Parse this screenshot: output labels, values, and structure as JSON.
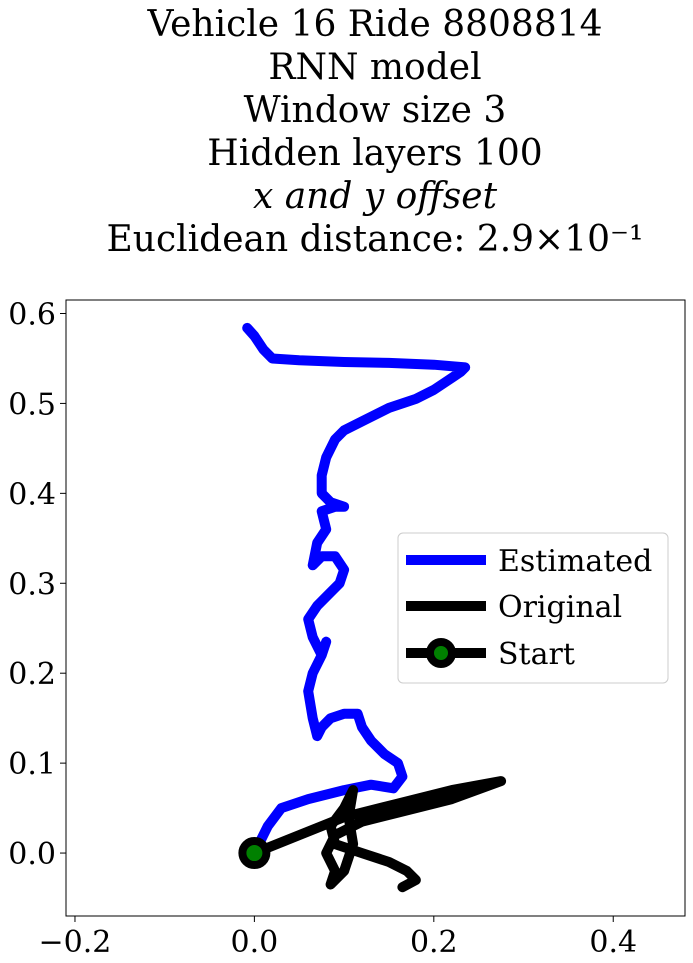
{
  "chart_data": {
    "type": "line",
    "title_lines": [
      "Vehicle 16 Ride 8808814",
      "RNN model",
      "Window size 3",
      "Hidden layers 100",
      "x and y offset",
      "Euclidean distance: 2.9×10⁻¹"
    ],
    "xlabel": "",
    "ylabel": "",
    "xlim": [
      -0.21,
      0.48
    ],
    "ylim": [
      -0.07,
      0.615
    ],
    "xticks": [
      -0.2,
      0.0,
      0.2,
      0.4
    ],
    "xtick_labels": [
      "−0.2",
      "0.0",
      "0.2",
      "0.4"
    ],
    "yticks": [
      0.0,
      0.1,
      0.2,
      0.3,
      0.4,
      0.5,
      0.6
    ],
    "ytick_labels": [
      "0.0",
      "0.1",
      "0.2",
      "0.3",
      "0.4",
      "0.5",
      "0.6"
    ],
    "grid": false,
    "legend_position": "center-right",
    "series": [
      {
        "name": "Estimated",
        "color": "#0000ff",
        "points": [
          [
            0.0,
            0.0
          ],
          [
            0.015,
            0.03
          ],
          [
            0.03,
            0.05
          ],
          [
            0.06,
            0.06
          ],
          [
            0.1,
            0.07
          ],
          [
            0.13,
            0.076
          ],
          [
            0.155,
            0.072
          ],
          [
            0.165,
            0.085
          ],
          [
            0.16,
            0.1
          ],
          [
            0.145,
            0.11
          ],
          [
            0.13,
            0.125
          ],
          [
            0.12,
            0.14
          ],
          [
            0.115,
            0.155
          ],
          [
            0.1,
            0.155
          ],
          [
            0.085,
            0.15
          ],
          [
            0.075,
            0.14
          ],
          [
            0.07,
            0.13
          ],
          [
            0.065,
            0.15
          ],
          [
            0.06,
            0.18
          ],
          [
            0.065,
            0.2
          ],
          [
            0.075,
            0.22
          ],
          [
            0.08,
            0.235
          ],
          [
            0.075,
            0.22
          ],
          [
            0.065,
            0.24
          ],
          [
            0.06,
            0.26
          ],
          [
            0.07,
            0.275
          ],
          [
            0.085,
            0.29
          ],
          [
            0.095,
            0.3
          ],
          [
            0.1,
            0.315
          ],
          [
            0.09,
            0.33
          ],
          [
            0.075,
            0.33
          ],
          [
            0.065,
            0.32
          ],
          [
            0.07,
            0.345
          ],
          [
            0.08,
            0.36
          ],
          [
            0.075,
            0.38
          ],
          [
            0.09,
            0.385
          ],
          [
            0.1,
            0.385
          ],
          [
            0.085,
            0.39
          ],
          [
            0.075,
            0.4
          ],
          [
            0.075,
            0.42
          ],
          [
            0.08,
            0.44
          ],
          [
            0.09,
            0.46
          ],
          [
            0.1,
            0.47
          ],
          [
            0.12,
            0.48
          ],
          [
            0.15,
            0.495
          ],
          [
            0.18,
            0.505
          ],
          [
            0.2,
            0.515
          ],
          [
            0.215,
            0.525
          ],
          [
            0.23,
            0.535
          ],
          [
            0.235,
            0.54
          ],
          [
            0.2,
            0.543
          ],
          [
            0.15,
            0.545
          ],
          [
            0.1,
            0.546
          ],
          [
            0.05,
            0.548
          ],
          [
            0.02,
            0.55
          ],
          [
            0.01,
            0.56
          ],
          [
            0.0,
            0.575
          ],
          [
            -0.008,
            0.584
          ]
        ]
      },
      {
        "name": "Original",
        "color": "#000000",
        "points": [
          [
            0.0,
            0.0
          ],
          [
            0.05,
            0.02
          ],
          [
            0.1,
            0.04
          ],
          [
            0.16,
            0.055
          ],
          [
            0.22,
            0.07
          ],
          [
            0.275,
            0.08
          ],
          [
            0.22,
            0.06
          ],
          [
            0.16,
            0.045
          ],
          [
            0.12,
            0.035
          ],
          [
            0.09,
            0.02
          ],
          [
            0.08,
            0.0
          ],
          [
            0.09,
            -0.02
          ],
          [
            0.085,
            -0.035
          ],
          [
            0.1,
            -0.02
          ],
          [
            0.11,
            0.01
          ],
          [
            0.105,
            0.04
          ],
          [
            0.11,
            0.07
          ],
          [
            0.1,
            0.05
          ],
          [
            0.085,
            0.03
          ],
          [
            0.09,
            0.01
          ],
          [
            0.12,
            0.0
          ],
          [
            0.15,
            -0.01
          ],
          [
            0.17,
            -0.02
          ],
          [
            0.18,
            -0.03
          ],
          [
            0.165,
            -0.038
          ]
        ]
      },
      {
        "name": "Start",
        "marker_fill": "#008000",
        "marker_edge": "#000000",
        "points": [
          [
            0.0,
            0.0
          ]
        ]
      }
    ]
  }
}
